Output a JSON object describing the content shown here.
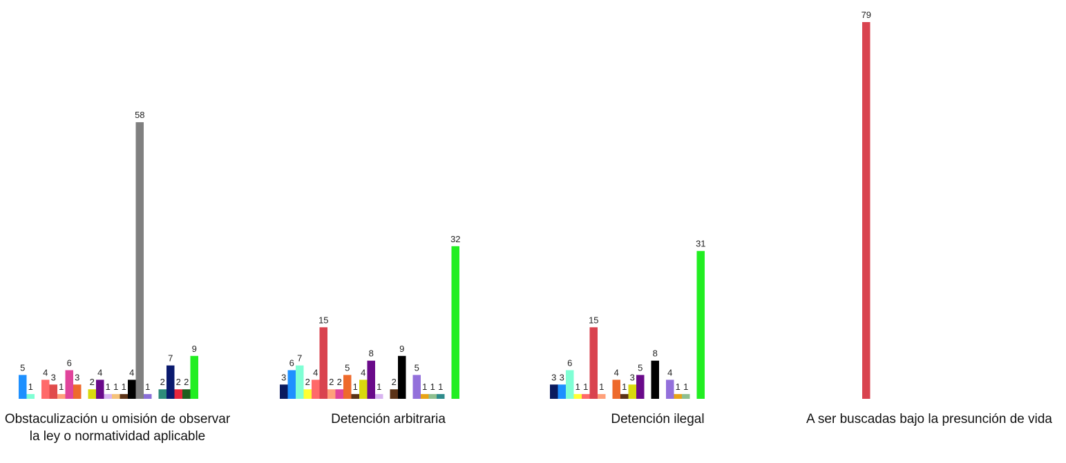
{
  "chart_data": {
    "type": "bar",
    "title": "",
    "xlabel": "",
    "ylabel": "",
    "ylim": [
      0,
      80
    ],
    "grid": false,
    "categories": [
      {
        "label": "Obstaculización u omisión de observar la ley o normatividad aplicable",
        "groups": [
          {
            "values": [
              5,
              1
            ],
            "colors": [
              "#1E90FF",
              "#7FFFD4"
            ]
          },
          {
            "values": [
              4,
              3,
              1,
              6,
              3
            ],
            "colors": [
              "#FF6A6A",
              "#E04B4B",
              "#FFA07A",
              "#E0449B",
              "#EE6A2C"
            ]
          },
          {
            "values": [
              2,
              4,
              1,
              1,
              1,
              4,
              58,
              1
            ],
            "colors": [
              "#D9D90E",
              "#6A0A8A",
              "#D8B4F0",
              "#F5C27A",
              "#5C3317",
              "#000000",
              "#808080",
              "#8A6FD8"
            ]
          },
          {
            "values": [
              2,
              7,
              2,
              2,
              9
            ],
            "colors": [
              "#2E8B7A",
              "#0A1A6E",
              "#E8263C",
              "#1F5F1F",
              "#22EE22"
            ]
          }
        ]
      },
      {
        "label": "Detención arbitraria",
        "groups": [
          {
            "values": [
              3,
              6,
              7,
              2,
              4,
              15,
              2,
              2,
              5,
              1,
              4,
              8,
              1
            ],
            "colors": [
              "#0A1A5E",
              "#1E90FF",
              "#7FFFD4",
              "#FFFF33",
              "#FF6A6A",
              "#D9434F",
              "#FFA07A",
              "#E0449B",
              "#EE6A2C",
              "#5C3317",
              "#D9D90E",
              "#6A0A8A",
              "#D8B4F0"
            ]
          },
          {
            "values": [
              2,
              9
            ],
            "colors": [
              "#5C3317",
              "#000000"
            ]
          },
          {
            "values": [
              5,
              1,
              1,
              1
            ],
            "colors": [
              "#9370DB",
              "#E8A317",
              "#8FBF8F",
              "#2E8B8B"
            ]
          },
          {
            "values": [
              32
            ],
            "colors": [
              "#22EE22"
            ]
          }
        ]
      },
      {
        "label": "Detención ilegal",
        "groups": [
          {
            "values": [
              3,
              3,
              6,
              1,
              1,
              15,
              1
            ],
            "colors": [
              "#0A1A5E",
              "#1E90FF",
              "#7FFFD4",
              "#FFFF33",
              "#FF6A6A",
              "#D9434F",
              "#FFA07A"
            ]
          },
          {
            "values": [
              4,
              1,
              3,
              5
            ],
            "colors": [
              "#EE6A2C",
              "#5C3317",
              "#D9D90E",
              "#6A0A8A"
            ]
          },
          {
            "values": [
              8
            ],
            "colors": [
              "#000000"
            ]
          },
          {
            "values": [
              4,
              1,
              1
            ],
            "colors": [
              "#9370DB",
              "#E8A317",
              "#8FBF8F"
            ]
          },
          {
            "values": [
              31
            ],
            "colors": [
              "#22EE22"
            ]
          }
        ]
      },
      {
        "label": "A ser buscadas bajo la presunción de vida",
        "groups": [
          {
            "values": [
              79
            ],
            "colors": [
              "#D9434F"
            ]
          }
        ]
      }
    ]
  }
}
